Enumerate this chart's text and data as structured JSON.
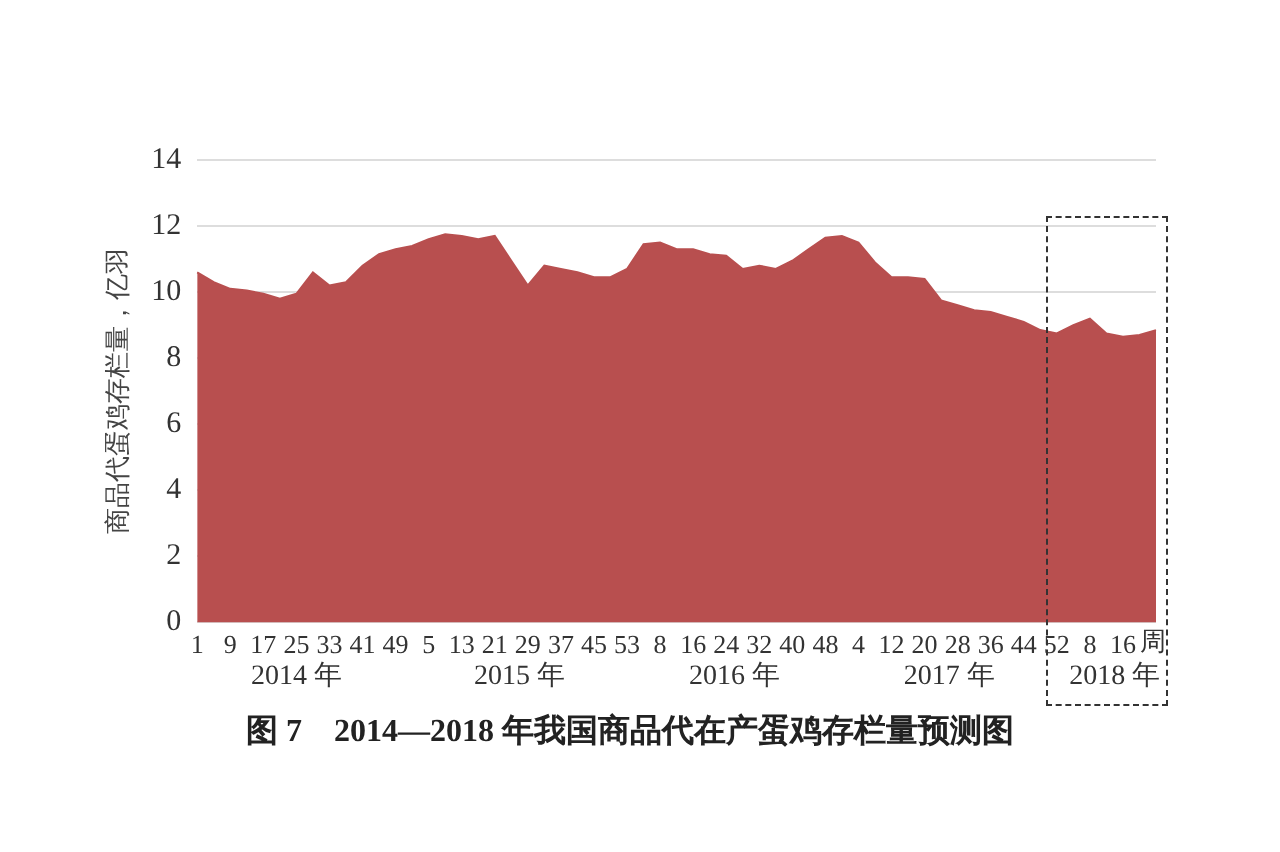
{
  "chart_data": {
    "type": "area",
    "title": "图 7　2014—2018 年我国商品代在产蛋鸡存栏量预测图",
    "ylabel": "商品代蛋鸡存栏量，亿羽",
    "xlabel": "周",
    "categories": [
      "1",
      null,
      "9",
      null,
      "17",
      null,
      "25",
      null,
      "33",
      null,
      "41",
      null,
      "49",
      null,
      "5",
      null,
      "13",
      null,
      "21",
      null,
      "29",
      null,
      "37",
      null,
      "45",
      null,
      "53",
      null,
      "8",
      null,
      "16",
      null,
      "24",
      null,
      "32",
      null,
      "40",
      null,
      "48",
      null,
      "4",
      null,
      "12",
      null,
      "20",
      null,
      "28",
      null,
      "36",
      null,
      "44",
      null,
      "52",
      null,
      "8",
      null,
      "16",
      null,
      null
    ],
    "series": [
      {
        "color": "#b84f4f",
        "values": [
          10.6,
          10.3,
          10.1,
          10.05,
          9.95,
          9.8,
          9.95,
          10.6,
          10.2,
          10.3,
          10.8,
          11.15,
          11.3,
          11.4,
          11.6,
          11.75,
          11.7,
          11.6,
          11.7,
          10.95,
          10.2,
          10.8,
          10.7,
          10.6,
          10.45,
          10.45,
          10.7,
          11.45,
          11.5,
          11.3,
          11.3,
          11.15,
          11.1,
          10.7,
          10.8,
          10.7,
          10.95,
          11.3,
          11.65,
          11.7,
          11.5,
          10.9,
          10.45,
          10.45,
          10.4,
          9.75,
          9.6,
          9.45,
          9.4,
          9.25,
          9.1,
          8.85,
          8.75,
          9.0,
          9.2,
          8.75,
          8.65,
          8.7,
          8.85
        ]
      }
    ],
    "ylim": [
      0,
      14
    ],
    "yticks": [
      0,
      2,
      4,
      6,
      8,
      10,
      12,
      14
    ],
    "grid": "y",
    "legend": false,
    "annotations": [
      "2014 年",
      "2015 年",
      "2016 年",
      "2017 年",
      "2018 年"
    ]
  }
}
